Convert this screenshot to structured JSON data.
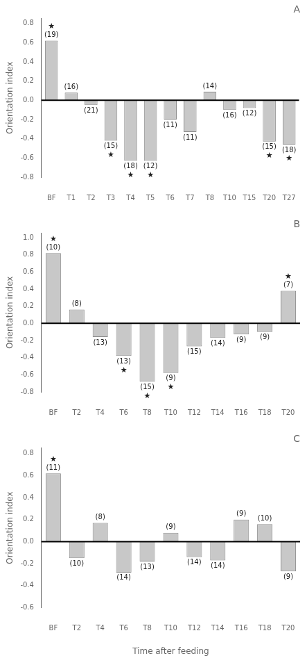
{
  "chart_data": [
    {
      "type": "bar",
      "title": "A",
      "categories": [
        "BF",
        "T1",
        "T2",
        "T3",
        "T4",
        "T5",
        "T6",
        "T7",
        "T8",
        "T10",
        "T15",
        "T20",
        "T27"
      ],
      "values": [
        0.62,
        0.08,
        -0.05,
        -0.42,
        -0.63,
        -0.63,
        -0.2,
        -0.33,
        0.09,
        -0.1,
        -0.08,
        -0.43,
        -0.46
      ],
      "color": "#c8c8c8",
      "ylabel": "Orientation index",
      "ylim": [
        -0.8,
        0.85
      ],
      "yticks": [
        -0.8,
        -0.6,
        -0.4,
        -0.2,
        {
          "value": 0.0,
          "label": "0.0"
        },
        0.2,
        0.4,
        0.6,
        0.8
      ],
      "grid": false,
      "annotations": [
        {
          "category": "BF",
          "text": "(19)"
        },
        {
          "category": "BF",
          "text": "★"
        },
        {
          "category": "T1",
          "text": "(16)"
        },
        {
          "category": "T2",
          "text": "(21)"
        },
        {
          "category": "T3",
          "text": "(15)"
        },
        {
          "category": "T3",
          "text": "★"
        },
        {
          "category": "T4",
          "text": "(18)"
        },
        {
          "category": "T4",
          "text": "★"
        },
        {
          "category": "T5",
          "text": "(12)"
        },
        {
          "category": "T5",
          "text": "★"
        },
        {
          "category": "T6",
          "text": "(11)"
        },
        {
          "category": "T7",
          "text": "(11)"
        },
        {
          "category": "T8",
          "text": "(14)"
        },
        {
          "category": "T10",
          "text": "(16)"
        },
        {
          "category": "T15",
          "text": "(12)"
        },
        {
          "category": "T20",
          "text": "(15)"
        },
        {
          "category": "T20",
          "text": "★"
        },
        {
          "category": "T27",
          "text": "(18)"
        },
        {
          "category": "T27",
          "text": "★"
        }
      ]
    },
    {
      "type": "bar",
      "title": "B",
      "categories": [
        "BF",
        "T2",
        "T4",
        "T6",
        "T8",
        "T10",
        "T12",
        "T14",
        "T16",
        "T18",
        "T20"
      ],
      "values": [
        0.82,
        0.16,
        -0.16,
        -0.38,
        -0.68,
        -0.58,
        -0.27,
        -0.17,
        -0.13,
        -0.1,
        0.38
      ],
      "color": "#c8c8c8",
      "ylabel": "Orientation index",
      "ylim": [
        -0.8,
        1.05
      ],
      "yticks": [
        -0.8,
        -0.6,
        -0.4,
        -0.2,
        {
          "value": 0.0,
          "label": "0.0"
        },
        0.2,
        0.4,
        0.6,
        0.8,
        {
          "value": 1.0,
          "label": "1.0"
        }
      ],
      "grid": false,
      "annotations": [
        {
          "category": "BF",
          "text": "(10)"
        },
        {
          "category": "BF",
          "text": "★"
        },
        {
          "category": "T2",
          "text": "(8)"
        },
        {
          "category": "T4",
          "text": "(13)"
        },
        {
          "category": "T6",
          "text": "(13)"
        },
        {
          "category": "T6",
          "text": "★"
        },
        {
          "category": "T8",
          "text": "(15)"
        },
        {
          "category": "T8",
          "text": "★"
        },
        {
          "category": "T10",
          "text": "(9)"
        },
        {
          "category": "T10",
          "text": "★"
        },
        {
          "category": "T12",
          "text": "(15)"
        },
        {
          "category": "T14",
          "text": "(14)"
        },
        {
          "category": "T16",
          "text": "(9)"
        },
        {
          "category": "T18",
          "text": "(9)"
        },
        {
          "category": "T20",
          "text": "(7)"
        },
        {
          "category": "T20",
          "text": "★"
        }
      ]
    },
    {
      "type": "bar",
      "title": "C",
      "categories": [
        "BF",
        "T2",
        "T4",
        "T6",
        "T8",
        "T10",
        "T12",
        "T14",
        "T16",
        "T18",
        "T20"
      ],
      "values": [
        0.62,
        -0.15,
        0.17,
        -0.28,
        -0.18,
        0.08,
        -0.14,
        -0.17,
        0.2,
        0.16,
        -0.27
      ],
      "color": "#c8c8c8",
      "ylabel": "Orientation index",
      "xlabel": "Time after feeding",
      "ylim": [
        -0.6,
        0.85
      ],
      "yticks": [
        -0.6,
        -0.4,
        -0.2,
        {
          "value": 0.0,
          "label": "0.0"
        },
        0.2,
        0.4,
        0.6,
        0.8
      ],
      "grid": false,
      "annotations": [
        {
          "category": "BF",
          "text": "(11)"
        },
        {
          "category": "BF",
          "text": "★"
        },
        {
          "category": "T2",
          "text": "(10)"
        },
        {
          "category": "T4",
          "text": "(8)"
        },
        {
          "category": "T6",
          "text": "(14)"
        },
        {
          "category": "T8",
          "text": "(13)"
        },
        {
          "category": "T10",
          "text": "(9)"
        },
        {
          "category": "T12",
          "text": "(14)"
        },
        {
          "category": "T14",
          "text": "(14)"
        },
        {
          "category": "T16",
          "text": "(9)"
        },
        {
          "category": "T18",
          "text": "(10)"
        },
        {
          "category": "T20",
          "text": "(9)"
        }
      ]
    }
  ]
}
